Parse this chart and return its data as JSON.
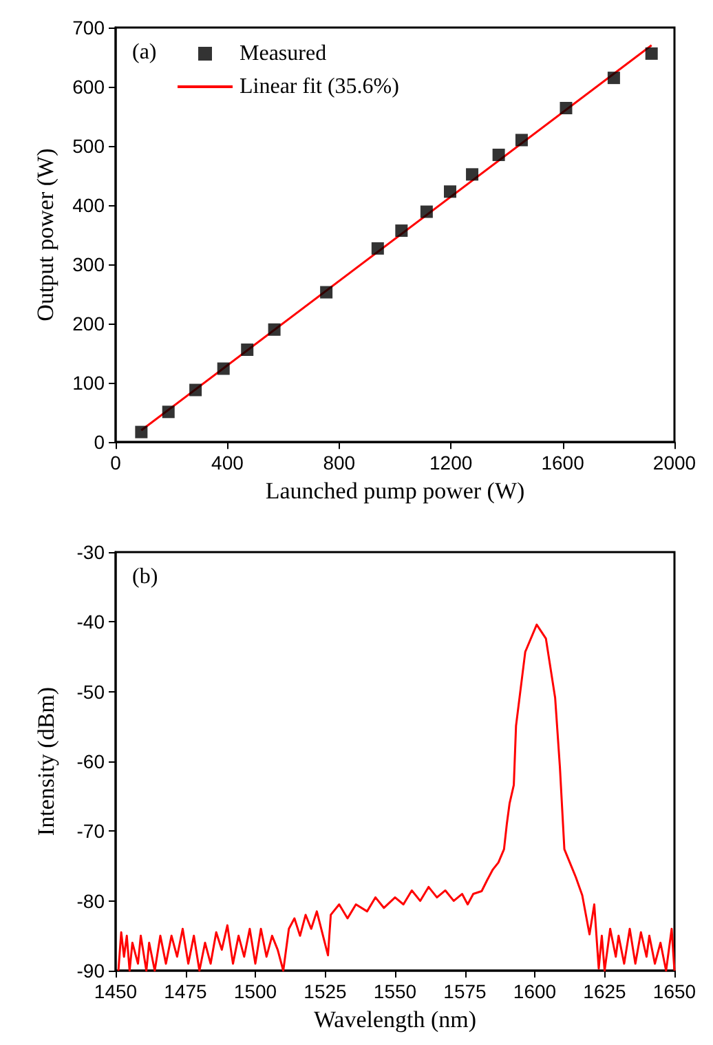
{
  "chart_data": [
    {
      "type": "scatter",
      "xlabel": "Launched pump power (W)",
      "ylabel": "Output power (W)",
      "annotations": [
        "(a)"
      ],
      "legend": "top left",
      "grid": false,
      "xlim": [
        0,
        2000
      ],
      "xticks": [
        0,
        400,
        800,
        1200,
        1600,
        2000
      ],
      "ylim": [
        0,
        700
      ],
      "yticks": [
        0,
        100,
        200,
        300,
        400,
        500,
        600,
        700
      ],
      "series": [
        {
          "name": "Measured",
          "marker": "square",
          "color": "#000000",
          "x": [
            92,
            189,
            286,
            386,
            471,
            568,
            754,
            938,
            1023,
            1113,
            1197,
            1276,
            1371,
            1453,
            1612,
            1783,
            1918
          ],
          "values": [
            17,
            51,
            88,
            124,
            156,
            190,
            253,
            327,
            357,
            389,
            423,
            452,
            485,
            510,
            564,
            615,
            656
          ]
        },
        {
          "name": "Linear fit (35.6%)",
          "type": "line",
          "marker": "none",
          "color": "#ff0000",
          "x": [
            92,
            1918
          ],
          "values": [
            20,
            670
          ]
        }
      ]
    },
    {
      "type": "line",
      "xlabel": "Wavelength (nm)",
      "ylabel": "Intensity (dBm)",
      "annotations": [
        "(b)"
      ],
      "grid": false,
      "xlim": [
        1450,
        1650
      ],
      "xticks": [
        1450,
        1475,
        1500,
        1525,
        1550,
        1575,
        1600,
        1625,
        1650
      ],
      "ylim": [
        -90,
        -30
      ],
      "yticks": [
        -90,
        -80,
        -70,
        -60,
        -50,
        -40,
        -30
      ],
      "series": [
        {
          "color": "#ff0000",
          "x": [
            1451,
            1452,
            1453,
            1454,
            1455,
            1456,
            1458,
            1459,
            1461,
            1462,
            1464,
            1466,
            1468,
            1470,
            1472,
            1474,
            1476,
            1478,
            1480,
            1482,
            1484,
            1486,
            1488,
            1490,
            1492,
            1494,
            1496,
            1498,
            1500,
            1502,
            1504,
            1506,
            1508,
            1510,
            1512,
            1514,
            1516,
            1518,
            1520,
            1522,
            1526,
            1527,
            1530,
            1533,
            1536,
            1540,
            1543,
            1546,
            1550,
            1553,
            1556,
            1559,
            1562,
            1565,
            1568,
            1571,
            1574,
            1576,
            1578,
            1581,
            1583,
            1585,
            1587,
            1589,
            1590,
            1591,
            1592.5,
            1593.3,
            1596.6,
            1600.7,
            1604,
            1607.3,
            1609,
            1610.6,
            1614.7,
            1617,
            1619.6,
            1621.3,
            1622.9,
            1624,
            1625,
            1627,
            1629,
            1630,
            1632,
            1634,
            1636,
            1638,
            1640,
            1641,
            1643,
            1645,
            1647,
            1649,
            1650
          ],
          "values": [
            -90,
            -84.5,
            -88,
            -85,
            -90,
            -86,
            -89,
            -85,
            -90,
            -86,
            -90,
            -85,
            -89,
            -85,
            -88,
            -84,
            -89,
            -85,
            -90,
            -86,
            -89,
            -84.5,
            -87,
            -83.5,
            -89,
            -85,
            -88,
            -84,
            -89,
            -84,
            -88,
            -85,
            -87,
            -90,
            -84,
            -82.5,
            -85,
            -82,
            -84,
            -81.5,
            -87.8,
            -82,
            -80.5,
            -82.5,
            -80.5,
            -81.5,
            -79.5,
            -81,
            -79.5,
            -80.5,
            -78.5,
            -80,
            -78,
            -79.5,
            -78.5,
            -80,
            -79,
            -80.5,
            -79,
            -78.6,
            -77,
            -75.5,
            -74.5,
            -72.6,
            -69,
            -66,
            -63.4,
            -54.9,
            -44.3,
            -40.4,
            -42.4,
            -50.9,
            -60.8,
            -72.6,
            -76.6,
            -79.2,
            -84.8,
            -80.5,
            -89.7,
            -85,
            -90,
            -84,
            -88,
            -85,
            -89,
            -84,
            -89,
            -84.5,
            -88,
            -85,
            -89,
            -86,
            -90,
            -84,
            -90
          ]
        }
      ]
    }
  ]
}
